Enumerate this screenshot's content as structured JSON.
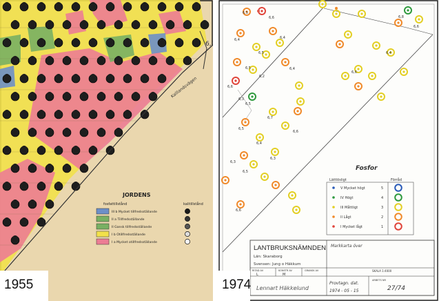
{
  "left_map": {
    "year": "1955",
    "legend": {
      "title": "JORDENS",
      "left_header": "fosfattillstånd",
      "right_header": "kalitillstånd",
      "rows": [
        {
          "label": "III b Mycket tillfredsställande",
          "color": "#6d8fc8"
        },
        {
          "label": "II a Tillfredsställande",
          "color": "#79b063"
        },
        {
          "label": "II Gansk tillfredsställande",
          "color": "#79b063"
        },
        {
          "label": "I b Otillfredsställande",
          "color": "#f2e14a"
        },
        {
          "label": "I a Mycket otillfredsställande",
          "color": "#ec7d94"
        }
      ]
    },
    "road_label": "Kalllandsvägen",
    "annotation": "6,1"
  },
  "right_map": {
    "year": "1974",
    "legend": {
      "title": "Fosfor",
      "left_header": "Lättlösligt",
      "right_header": "Förråd",
      "rows": [
        {
          "label": "V Mycket högt",
          "num": "5",
          "color": "#2a5bb8"
        },
        {
          "label": "IV Högt",
          "num": "4",
          "color": "#2f9a3e"
        },
        {
          "label": "III Måttligt",
          "num": "3",
          "color": "#e3cf24"
        },
        {
          "label": "II Lågt",
          "num": "2",
          "color": "#f08a2b"
        },
        {
          "label": "I Mycket lågt",
          "num": "1",
          "color": "#e0443a"
        }
      ]
    },
    "title_block": {
      "agency": "LANTBRUKSNÄMNDEN",
      "county": "Län: Skaraborg",
      "property": "Svensen: Jung o Häkkum",
      "owner_label": "Markkarta över",
      "columns": [
        "RITAD AV",
        "KONSTR AV",
        "GRANSK AV"
      ],
      "values": [
        "L",
        "M",
        ""
      ],
      "scale_label": "SKALA 1:4000",
      "sample_label": "Provtagn. dat.",
      "sample_date": "1974 - 05 - 15",
      "sheet_label": "ARBETS NR",
      "sheet_no": "27/74",
      "signature": "Lennart Häkkelund"
    },
    "sample_labels": [
      "6,5",
      "6,6",
      "6,4",
      "6,5",
      "6,4",
      "6,5",
      "6,2",
      "6,4",
      "6,6",
      "6,5",
      "6,7",
      "6,6",
      "6,5",
      "6,4",
      "6,3",
      "6,3",
      "6,5",
      "6,6",
      "6,4",
      "6,8",
      "6,6",
      "6,6",
      "6,3"
    ]
  }
}
